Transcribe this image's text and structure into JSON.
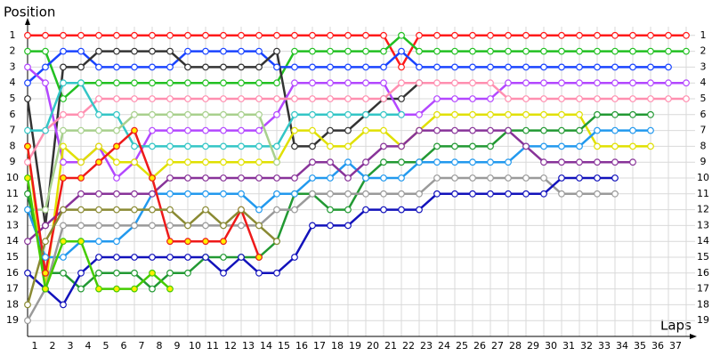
{
  "chart_data": {
    "type": "lap",
    "y_label": "Position",
    "x_label": "Laps",
    "x": [
      0,
      1,
      2,
      3,
      4,
      5,
      6,
      7,
      8,
      9,
      10,
      11,
      12,
      13,
      14,
      15,
      16,
      17,
      18,
      19,
      20,
      21,
      22,
      23,
      24,
      25,
      26,
      27,
      28,
      29,
      30,
      31,
      32,
      33,
      34,
      35,
      36,
      37
    ],
    "xlim": [
      0,
      37.5
    ],
    "xticks": [
      1,
      2,
      3,
      4,
      5,
      6,
      7,
      8,
      9,
      10,
      11,
      12,
      13,
      14,
      15,
      16,
      17,
      18,
      19,
      20,
      21,
      22,
      23,
      24,
      25,
      26,
      27,
      28,
      29,
      30,
      31,
      32,
      33,
      34,
      35,
      36,
      37
    ],
    "ylim": [
      0,
      20
    ],
    "y_inverted": true,
    "yticks": [
      1,
      2,
      3,
      4,
      5,
      6,
      7,
      8,
      9,
      10,
      11,
      12,
      13,
      14,
      15,
      16,
      17,
      18,
      19
    ],
    "grid": true,
    "marker_fill": "#ffffff",
    "series": [
      {
        "color": "#ff1a1a",
        "values": [
          1,
          1,
          1,
          1,
          1,
          1,
          1,
          1,
          1,
          1,
          1,
          1,
          1,
          1,
          1,
          1,
          1,
          1,
          1,
          1,
          1,
          3,
          1,
          1,
          1,
          1,
          1,
          1,
          1,
          1,
          1,
          1,
          1,
          1,
          1,
          1,
          1,
          1
        ]
      },
      {
        "color": "#22c022",
        "values": [
          2,
          2,
          5,
          4,
          4,
          4,
          4,
          4,
          4,
          4,
          4,
          4,
          4,
          4,
          4,
          2,
          2,
          2,
          2,
          2,
          2,
          1,
          2,
          2,
          2,
          2,
          2,
          2,
          2,
          2,
          2,
          2,
          2,
          2,
          2,
          2,
          2,
          2
        ]
      },
      {
        "color": "#1a44ff",
        "values": [
          4,
          3,
          2,
          2,
          3,
          3,
          3,
          3,
          3,
          2,
          2,
          2,
          2,
          2,
          3,
          3,
          3,
          3,
          3,
          3,
          3,
          2,
          3,
          3,
          3,
          3,
          3,
          3,
          3,
          3,
          3,
          3,
          3,
          3,
          3,
          3,
          3,
          null
        ]
      },
      {
        "color": "#333333",
        "values": [
          5,
          13,
          3,
          3,
          2,
          2,
          2,
          2,
          2,
          3,
          3,
          3,
          3,
          3,
          2,
          8,
          8,
          7,
          7,
          6,
          5,
          5,
          4,
          null,
          null,
          null,
          null,
          null,
          null,
          null,
          null,
          null,
          null,
          null,
          null,
          null,
          null,
          null
        ]
      },
      {
        "color": "#b347ff",
        "values": [
          3,
          4,
          9,
          9,
          8,
          10,
          9,
          7,
          7,
          7,
          7,
          7,
          7,
          7,
          6,
          4,
          4,
          4,
          4,
          4,
          4,
          6,
          6,
          5,
          5,
          5,
          5,
          4,
          4,
          4,
          4,
          4,
          4,
          4,
          4,
          4,
          4,
          4
        ]
      },
      {
        "color": "#ff8fb0",
        "values": [
          9,
          7,
          6,
          6,
          5,
          5,
          5,
          5,
          5,
          5,
          5,
          5,
          5,
          5,
          5,
          5,
          5,
          5,
          5,
          5,
          5,
          4,
          4,
          4,
          4,
          4,
          4,
          5,
          5,
          5,
          5,
          5,
          5,
          5,
          5,
          5,
          5,
          5
        ]
      },
      {
        "color": "#33c6c6",
        "values": [
          7,
          7,
          4,
          4,
          6,
          6,
          8,
          8,
          8,
          8,
          8,
          8,
          8,
          8,
          8,
          6,
          6,
          6,
          6,
          6,
          6,
          6,
          null,
          null,
          null,
          null,
          null,
          null,
          null,
          null,
          null,
          null,
          null,
          null,
          null,
          null,
          null,
          null
        ]
      },
      {
        "color": "#e0e000",
        "values": [
          8,
          17,
          8,
          9,
          8,
          9,
          9,
          10,
          9,
          9,
          9,
          9,
          9,
          9,
          9,
          7,
          7,
          8,
          8,
          7,
          7,
          8,
          7,
          6,
          6,
          6,
          6,
          6,
          6,
          6,
          6,
          6,
          8,
          8,
          8,
          8,
          null,
          null
        ]
      },
      {
        "color": "#a8d08d",
        "values": [
          12,
          12,
          7,
          7,
          7,
          7,
          6,
          6,
          6,
          6,
          6,
          6,
          6,
          6,
          9,
          null,
          null,
          null,
          null,
          null,
          null,
          null,
          null,
          null,
          null,
          null,
          null,
          null,
          null,
          null,
          null,
          null,
          null,
          null,
          null,
          null,
          null,
          null
        ]
      },
      {
        "color": "#229933",
        "values": [
          11,
          16,
          16,
          17,
          16,
          16,
          16,
          17,
          16,
          16,
          15,
          15,
          15,
          15,
          14,
          11,
          11,
          12,
          12,
          10,
          9,
          9,
          9,
          8,
          8,
          8,
          8,
          7,
          7,
          7,
          7,
          7,
          6,
          6,
          6,
          6,
          null,
          null
        ]
      },
      {
        "color": "#2299ee",
        "values": [
          12,
          15,
          15,
          14,
          14,
          14,
          13,
          11,
          11,
          11,
          11,
          11,
          11,
          12,
          11,
          11,
          10,
          10,
          9,
          10,
          10,
          10,
          9,
          9,
          9,
          9,
          9,
          9,
          8,
          8,
          8,
          8,
          7,
          7,
          7,
          7,
          null,
          null
        ]
      },
      {
        "color": "#883399",
        "values": [
          14,
          13,
          12,
          11,
          11,
          11,
          11,
          11,
          10,
          10,
          10,
          10,
          10,
          10,
          10,
          10,
          9,
          9,
          10,
          9,
          8,
          8,
          7,
          7,
          7,
          7,
          7,
          7,
          8,
          9,
          9,
          9,
          9,
          9,
          9,
          null,
          null,
          null
        ]
      },
      {
        "color": "#9a9a9a",
        "values": [
          19,
          17,
          13,
          13,
          13,
          13,
          13,
          13,
          13,
          13,
          13,
          13,
          13,
          13,
          12,
          12,
          11,
          11,
          11,
          11,
          11,
          11,
          11,
          10,
          10,
          10,
          10,
          10,
          10,
          10,
          11,
          11,
          11,
          11,
          null,
          null,
          null,
          null
        ]
      },
      {
        "color": "#1212bb",
        "values": [
          16,
          17,
          18,
          16,
          15,
          15,
          15,
          15,
          15,
          15,
          15,
          16,
          15,
          16,
          16,
          15,
          13,
          13,
          13,
          12,
          12,
          12,
          12,
          11,
          11,
          11,
          11,
          11,
          11,
          11,
          10,
          10,
          10,
          10,
          null,
          null,
          null,
          null
        ]
      },
      {
        "color": "#ee1a1a",
        "marker_fill": "#ffee00",
        "values": [
          8,
          16,
          10,
          10,
          9,
          8,
          7,
          10,
          14,
          14,
          14,
          14,
          12,
          15,
          null,
          null,
          null,
          null,
          null,
          null,
          null,
          null,
          null,
          null,
          null,
          null,
          null,
          null,
          null,
          null,
          null,
          null,
          null,
          null,
          null,
          null,
          null,
          null
        ]
      },
      {
        "color": "#8a8a33",
        "values": [
          18,
          14,
          12,
          12,
          12,
          12,
          12,
          12,
          12,
          13,
          12,
          13,
          12,
          13,
          14,
          null,
          null,
          null,
          null,
          null,
          null,
          null,
          null,
          null,
          null,
          null,
          null,
          null,
          null,
          null,
          null,
          null,
          null,
          null,
          null,
          null,
          null,
          null
        ]
      },
      {
        "color": "#44cc00",
        "marker_fill": "#ffee00",
        "values": [
          10,
          17,
          14,
          14,
          17,
          17,
          17,
          16,
          17,
          null,
          null,
          null,
          null,
          null,
          null,
          null,
          null,
          null,
          null,
          null,
          null,
          null,
          null,
          null,
          null,
          null,
          null,
          null,
          null,
          null,
          null,
          null,
          null,
          null,
          null,
          null,
          null,
          null
        ]
      }
    ]
  }
}
